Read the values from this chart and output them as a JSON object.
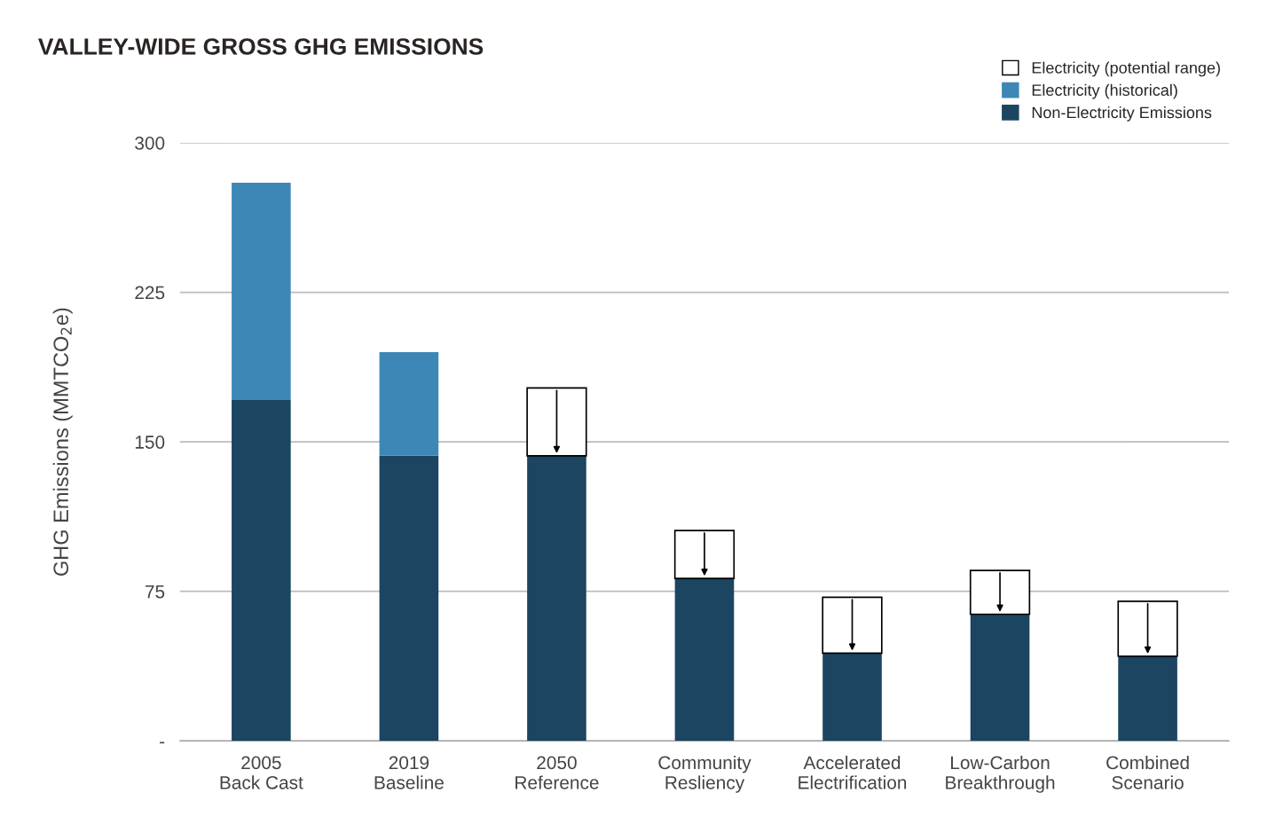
{
  "chart_data": {
    "type": "bar",
    "title": "VALLEY-WIDE GROSS GHG EMISSIONS",
    "ylabel": "GHG Emissions (MMTCO$_{2}$e)",
    "categories": [
      "2005\nBack Cast",
      "2019\nBaseline",
      "2050\nReference",
      "Community\nResliency",
      "Accelerated\nElectrification",
      "Low-Carbon\nBreakthrough",
      "Combined\nScenario"
    ],
    "stacked": true,
    "series": [
      {
        "name": "Non-Electricity Emissions",
        "color": "#1b4560",
        "values": [
          171,
          143,
          143,
          81.5,
          44,
          63.5,
          42.5
        ]
      },
      {
        "name": "Electricity (historical)",
        "color": "#3d87b6",
        "values": [
          109,
          52,
          null,
          null,
          null,
          null,
          null
        ]
      },
      {
        "name": "Electricity (potential range)",
        "color": "#ffffff",
        "values": [
          null,
          null,
          34,
          24,
          28,
          22,
          27.5
        ]
      }
    ],
    "ylim": [
      0,
      300
    ],
    "yticks": [
      {
        "value": 0,
        "label": "-"
      },
      75,
      150,
      225,
      300
    ],
    "grid": "y",
    "legend": "top right"
  }
}
